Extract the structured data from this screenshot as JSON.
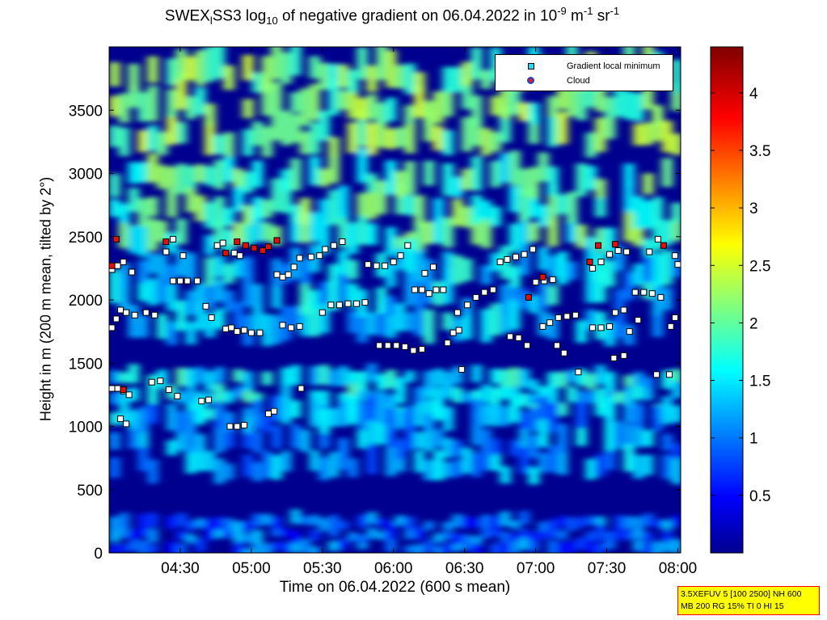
{
  "title": {
    "prefix": "SWEX",
    "sub1": "l",
    "mid": "SS3 log",
    "sub2": "10",
    "text": " of negative gradient on 06.04.2022 in 10",
    "sup1": "-9",
    "unit1": " m",
    "sup2": "-1",
    "unit2": " sr",
    "sup3": "-1"
  },
  "info_box": {
    "line1": "3.5XEFUV 5 [100 2500] NH 600",
    "line2": "MB 200 RG 15% TI 0 HI 15"
  },
  "legend": {
    "item1": "Gradient local minimum",
    "item2": "Cloud",
    "colors": {
      "minimum_fill": "#28d7f0",
      "cloud_fill": "#e02020",
      "cloud_edge": "#2040d0"
    }
  },
  "chart_data": {
    "type": "heatmap",
    "xlabel": "Time on 06.04.2022 (600 s mean)",
    "ylabel": "Height in m (200 m mean, tilted by 2°)",
    "x_ticks": [
      "04:30",
      "05:00",
      "05:30",
      "06:00",
      "06:30",
      "07:00",
      "07:30",
      "08:00"
    ],
    "x_tick_hours": [
      4.5,
      5.0,
      5.5,
      6.0,
      6.5,
      7.0,
      7.5,
      8.0
    ],
    "xlim_hours": [
      4.0,
      8.02
    ],
    "y_ticks": [
      0,
      500,
      1000,
      1500,
      2000,
      2500,
      3000,
      3500
    ],
    "ylim": [
      0,
      4000
    ],
    "colorbar": {
      "ticks": [
        "0.5",
        "1",
        "1.5",
        "2",
        "2.5",
        "3",
        "3.5",
        "4"
      ],
      "tick_values": [
        0.5,
        1,
        1.5,
        2,
        2.5,
        3,
        3.5,
        4
      ],
      "range": [
        0,
        4.4
      ],
      "colormap": "jet"
    },
    "layers": [
      {
        "name": "layer_top",
        "from_m": 3200,
        "to_m": 3950,
        "level": 2.1
      },
      {
        "name": "layer_upper",
        "from_m": 2400,
        "to_m": 3100,
        "level": 1.9
      },
      {
        "name": "layer_mid",
        "from_m": 1700,
        "to_m": 2400,
        "level": 1.4
      },
      {
        "name": "layer_low",
        "from_m": 1050,
        "to_m": 1450,
        "level": 1.5
      },
      {
        "name": "layer_bottom",
        "from_m": 600,
        "to_m": 1200,
        "level": 1.2
      },
      {
        "name": "layer_surface",
        "from_m": 0,
        "to_m": 300,
        "level": 0.9
      }
    ],
    "series": [
      {
        "name": "Gradient local minimum",
        "points": [
          [
            4.02,
            1780
          ],
          [
            4.05,
            1850
          ],
          [
            4.08,
            1920
          ],
          [
            4.12,
            1900
          ],
          [
            4.18,
            1880
          ],
          [
            4.02,
            2240
          ],
          [
            4.06,
            2270
          ],
          [
            4.1,
            2300
          ],
          [
            4.16,
            2220
          ],
          [
            4.02,
            1300
          ],
          [
            4.06,
            1300
          ],
          [
            4.1,
            1280
          ],
          [
            4.14,
            1250
          ],
          [
            4.08,
            1060
          ],
          [
            4.12,
            1020
          ],
          [
            4.3,
            1350
          ],
          [
            4.36,
            1360
          ],
          [
            4.42,
            1290
          ],
          [
            4.48,
            1240
          ],
          [
            4.26,
            1900
          ],
          [
            4.32,
            1880
          ],
          [
            4.45,
            2150
          ],
          [
            4.5,
            2150
          ],
          [
            4.55,
            2150
          ],
          [
            4.62,
            2150
          ],
          [
            4.4,
            2380
          ],
          [
            4.45,
            2480
          ],
          [
            4.52,
            2350
          ],
          [
            4.68,
            1950
          ],
          [
            4.72,
            1860
          ],
          [
            4.65,
            1200
          ],
          [
            4.7,
            1210
          ],
          [
            4.82,
            1770
          ],
          [
            4.86,
            1780
          ],
          [
            4.9,
            1750
          ],
          [
            4.95,
            1760
          ],
          [
            5.0,
            1740
          ],
          [
            5.06,
            1740
          ],
          [
            4.85,
            1000
          ],
          [
            4.9,
            1000
          ],
          [
            4.95,
            1010
          ],
          [
            4.88,
            2370
          ],
          [
            4.92,
            2350
          ],
          [
            4.76,
            2430
          ],
          [
            4.8,
            2450
          ],
          [
            5.12,
            1100
          ],
          [
            5.16,
            1120
          ],
          [
            5.18,
            2200
          ],
          [
            5.22,
            2180
          ],
          [
            5.26,
            2200
          ],
          [
            5.3,
            2260
          ],
          [
            5.34,
            2330
          ],
          [
            5.22,
            1800
          ],
          [
            5.28,
            1780
          ],
          [
            5.34,
            1790
          ],
          [
            5.35,
            1300
          ],
          [
            5.42,
            2340
          ],
          [
            5.48,
            2350
          ],
          [
            5.52,
            2400
          ],
          [
            5.58,
            2430
          ],
          [
            5.64,
            2460
          ],
          [
            5.5,
            1900
          ],
          [
            5.56,
            1960
          ],
          [
            5.62,
            1960
          ],
          [
            5.68,
            1970
          ],
          [
            5.74,
            1970
          ],
          [
            5.8,
            1980
          ],
          [
            5.82,
            2280
          ],
          [
            5.88,
            2270
          ],
          [
            5.94,
            2270
          ],
          [
            6.0,
            2300
          ],
          [
            6.05,
            2350
          ],
          [
            6.1,
            2430
          ],
          [
            5.9,
            1640
          ],
          [
            5.96,
            1640
          ],
          [
            6.02,
            1640
          ],
          [
            6.08,
            1630
          ],
          [
            6.14,
            1600
          ],
          [
            6.2,
            1610
          ],
          [
            6.15,
            2080
          ],
          [
            6.2,
            2080
          ],
          [
            6.25,
            2050
          ],
          [
            6.22,
            2210
          ],
          [
            6.28,
            2260
          ],
          [
            6.38,
            1660
          ],
          [
            6.42,
            1740
          ],
          [
            6.46,
            1760
          ],
          [
            6.45,
            1900
          ],
          [
            6.52,
            1960
          ],
          [
            6.58,
            2020
          ],
          [
            6.64,
            2060
          ],
          [
            6.7,
            2080
          ],
          [
            6.3,
            2080
          ],
          [
            6.35,
            2080
          ],
          [
            6.75,
            2300
          ],
          [
            6.8,
            2320
          ],
          [
            6.86,
            2340
          ],
          [
            6.92,
            2360
          ],
          [
            6.98,
            2400
          ],
          [
            6.82,
            1710
          ],
          [
            6.88,
            1700
          ],
          [
            6.94,
            1640
          ],
          [
            7.0,
            2140
          ],
          [
            7.06,
            2150
          ],
          [
            7.12,
            2160
          ],
          [
            7.05,
            1790
          ],
          [
            7.1,
            1820
          ],
          [
            7.16,
            1860
          ],
          [
            7.22,
            1870
          ],
          [
            7.28,
            1880
          ],
          [
            7.15,
            1640
          ],
          [
            7.2,
            1580
          ],
          [
            7.4,
            2250
          ],
          [
            7.46,
            2300
          ],
          [
            7.52,
            2360
          ],
          [
            7.58,
            2390
          ],
          [
            7.64,
            2380
          ],
          [
            7.4,
            1780
          ],
          [
            7.46,
            1780
          ],
          [
            7.52,
            1790
          ],
          [
            7.56,
            1900
          ],
          [
            7.62,
            1920
          ],
          [
            7.7,
            2060
          ],
          [
            7.76,
            2060
          ],
          [
            7.82,
            2050
          ],
          [
            7.88,
            2020
          ],
          [
            7.66,
            1750
          ],
          [
            7.72,
            1840
          ],
          [
            7.8,
            2380
          ],
          [
            7.86,
            2480
          ],
          [
            7.55,
            1540
          ],
          [
            7.62,
            1560
          ],
          [
            7.95,
            1790
          ],
          [
            7.98,
            1860
          ],
          [
            8.0,
            2280
          ],
          [
            7.98,
            2350
          ],
          [
            7.85,
            1410
          ],
          [
            7.3,
            1430
          ],
          [
            6.48,
            1450
          ],
          [
            7.94,
            1410
          ]
        ]
      },
      {
        "name": "Cloud",
        "points": [
          [
            4.02,
            2270
          ],
          [
            4.05,
            2480
          ],
          [
            4.1,
            1290
          ],
          [
            4.4,
            2460
          ],
          [
            4.82,
            2370
          ],
          [
            4.9,
            2460
          ],
          [
            4.96,
            2430
          ],
          [
            5.02,
            2410
          ],
          [
            5.08,
            2390
          ],
          [
            5.12,
            2420
          ],
          [
            5.18,
            2470
          ],
          [
            7.05,
            2180
          ],
          [
            7.38,
            2300
          ],
          [
            7.44,
            2430
          ],
          [
            7.56,
            2440
          ],
          [
            7.9,
            2430
          ],
          [
            6.95,
            2020
          ]
        ]
      }
    ]
  }
}
